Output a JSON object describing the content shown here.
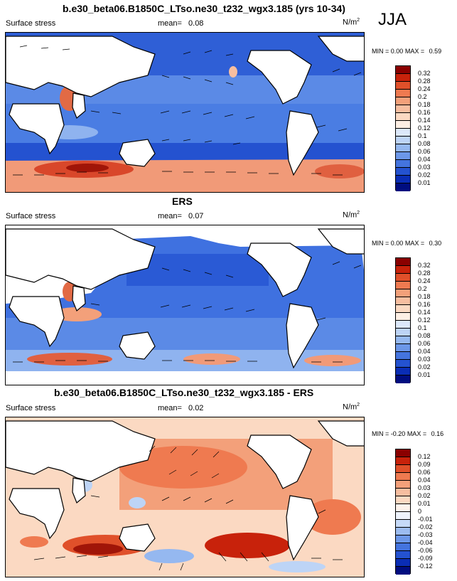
{
  "season": "JJA",
  "panels": [
    {
      "title": "b.e30_beta06.B1850C_LTso.ne30_t232_wgx3.185 (yrs 10-34)",
      "variable": "Surface stress",
      "mean_label": "mean=",
      "mean_value": "0.08",
      "units": "N/m",
      "units_sup": "2",
      "min_label": "MIN =",
      "min_value": "0.00",
      "max_label": "MAX =",
      "max_value": "0.59",
      "colorbar_labels": [
        "0.32",
        "0.28",
        "0.24",
        "0.2",
        "0.18",
        "0.16",
        "0.14",
        "0.12",
        "0.1",
        "0.08",
        "0.06",
        "0.04",
        "0.03",
        "0.02",
        "0.01"
      ],
      "colorbar_colors": [
        "#8b0000",
        "#c8220b",
        "#e0502a",
        "#ef7a50",
        "#f3a07a",
        "#f7bea0",
        "#fbd9c2",
        "#fdefe4",
        "#dce8fa",
        "#bdd4f6",
        "#95b8f0",
        "#6c97e8",
        "#4474de",
        "#2452d0",
        "#0a2db5",
        "#000d80"
      ]
    },
    {
      "title": "ERS",
      "variable": "Surface stress",
      "mean_label": "mean=",
      "mean_value": "0.07",
      "units": "N/m",
      "units_sup": "2",
      "min_label": "MIN =",
      "min_value": "0.00",
      "max_label": "MAX =",
      "max_value": "0.30",
      "colorbar_labels": [
        "0.32",
        "0.28",
        "0.24",
        "0.2",
        "0.18",
        "0.16",
        "0.14",
        "0.12",
        "0.1",
        "0.08",
        "0.06",
        "0.04",
        "0.03",
        "0.02",
        "0.01"
      ],
      "colorbar_colors": [
        "#8b0000",
        "#c8220b",
        "#e0502a",
        "#ef7a50",
        "#f3a07a",
        "#f7bea0",
        "#fbd9c2",
        "#fdefe4",
        "#dce8fa",
        "#bdd4f6",
        "#95b8f0",
        "#6c97e8",
        "#4474de",
        "#2452d0",
        "#0a2db5",
        "#000d80"
      ]
    },
    {
      "title": "b.e30_beta06.B1850C_LTso.ne30_t232_wgx3.185 - ERS",
      "variable": "Surface stress",
      "mean_label": "mean=",
      "mean_value": "0.02",
      "units": "N/m",
      "units_sup": "2",
      "min_label": "MIN =",
      "min_value": "-0.20",
      "max_label": "MAX =",
      "max_value": "0.16",
      "colorbar_labels": [
        "0.12",
        "0.09",
        "0.06",
        "0.04",
        "0.03",
        "0.02",
        "0.01",
        "0",
        "-0.01",
        "-0.02",
        "-0.03",
        "-0.04",
        "-0.06",
        "-0.09",
        "-0.12"
      ],
      "colorbar_colors": [
        "#8b0000",
        "#c8220b",
        "#e0502a",
        "#ef7a50",
        "#f3a07a",
        "#f7bea0",
        "#fbd9c2",
        "#fdf3ec",
        "#eef3fc",
        "#c6daf8",
        "#9cbcf0",
        "#6c97e8",
        "#4474de",
        "#2452d0",
        "#0a2db5",
        "#000d80"
      ]
    }
  ]
}
